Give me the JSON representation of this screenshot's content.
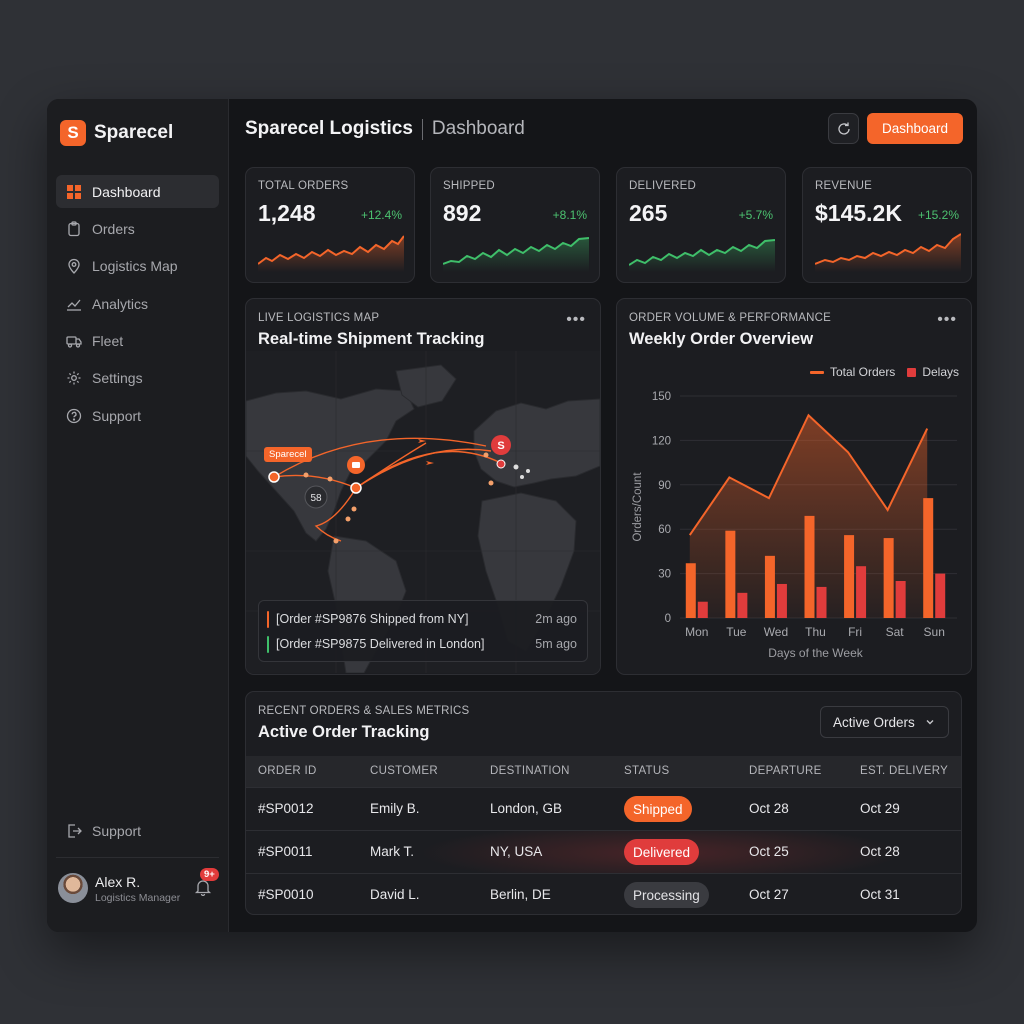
{
  "brand": {
    "name": "Sparecel",
    "logo_letter": "S"
  },
  "sidebar": {
    "items": [
      {
        "label": "Dashboard",
        "icon": "grid-icon",
        "active": true
      },
      {
        "label": "Orders",
        "icon": "clipboard-icon"
      },
      {
        "label": "Logistics Map",
        "icon": "map-pin-icon"
      },
      {
        "label": "Analytics",
        "icon": "chart-line-icon"
      },
      {
        "label": "Fleet",
        "icon": "truck-icon"
      },
      {
        "label": "Settings",
        "icon": "gear-icon"
      },
      {
        "label": "Support",
        "icon": "help-icon"
      }
    ],
    "bottom_support": "Support",
    "user": {
      "name": "Alex R.",
      "role": "Logistics Manager",
      "notifications": "9+"
    }
  },
  "header": {
    "title": "Sparecel Logistics",
    "subtitle": "Dashboard",
    "button": "Dashboard"
  },
  "kpis": [
    {
      "label": "TOTAL ORDERS",
      "value": "1,248",
      "delta": "+12.4%",
      "color": "#f4652a"
    },
    {
      "label": "SHIPPED",
      "value": "892",
      "delta": "+8.1%",
      "color": "#3fbf6a"
    },
    {
      "label": "DELIVERED",
      "value": "265",
      "delta": "+5.7%",
      "color": "#3fbf6a"
    },
    {
      "label": "REVENUE",
      "value": "$145.2K",
      "delta": "+15.2%",
      "color": "#f4652a"
    }
  ],
  "map": {
    "label": "LIVE LOGISTICS MAP",
    "title": "Real-time Shipment Tracking",
    "pin_tag": "Sparecel",
    "hub_label": "S",
    "cluster_label": "58",
    "feed": [
      {
        "text": "[Order #SP9876 Shipped from NY]",
        "time": "2m ago",
        "color": "#f4652a"
      },
      {
        "text": "[Order #SP9875 Delivered in London]",
        "time": "5m ago",
        "color": "#3fbf6a"
      }
    ]
  },
  "chart": {
    "label": "ORDER VOLUME & PERFORMANCE",
    "title": "Weekly Order Overview"
  },
  "chart_data": {
    "type": "bar",
    "categories": [
      "Mon",
      "Tue",
      "Wed",
      "Thu",
      "Fri",
      "Sat",
      "Sun"
    ],
    "series": [
      {
        "name": "Total Orders",
        "type": "line+bar",
        "values": [
          37,
          59,
          42,
          69,
          56,
          54,
          81
        ],
        "line_values": [
          56,
          95,
          81,
          137,
          112,
          73,
          128
        ],
        "color": "#f4652a"
      },
      {
        "name": "Delays",
        "type": "bar",
        "values": [
          11,
          17,
          23,
          21,
          35,
          25,
          30
        ],
        "color": "#e03c3c"
      }
    ],
    "xlabel": "Days of the Week",
    "ylabel": "Orders/Count",
    "yticks": [
      0,
      30,
      60,
      90,
      120,
      150
    ],
    "ylim": [
      0,
      150
    ],
    "grid": true,
    "legend": "top-right"
  },
  "table": {
    "label": "RECENT ORDERS & SALES METRICS",
    "title": "Active Order Tracking",
    "filter": "Active Orders",
    "columns": [
      "ORDER ID",
      "CUSTOMER",
      "DESTINATION",
      "STATUS",
      "DEPARTURE",
      "EST. DELIVERY"
    ],
    "rows": [
      {
        "id": "#SP0012",
        "customer": "Emily B.",
        "destination": "London, GB",
        "status": "Shipped",
        "status_kind": "shipped",
        "departure": "Oct 28",
        "delivery": "Oct 29"
      },
      {
        "id": "#SP0011",
        "customer": "Mark T.",
        "destination": "NY, USA",
        "status": "Delivered",
        "status_kind": "delivered",
        "departure": "Oct 25",
        "delivery": "Oct 28"
      },
      {
        "id": "#SP0010",
        "customer": "David L.",
        "destination": "Berlin, DE",
        "status": "Processing",
        "status_kind": "processing",
        "departure": "Oct 27",
        "delivery": "Oct 31"
      }
    ]
  }
}
